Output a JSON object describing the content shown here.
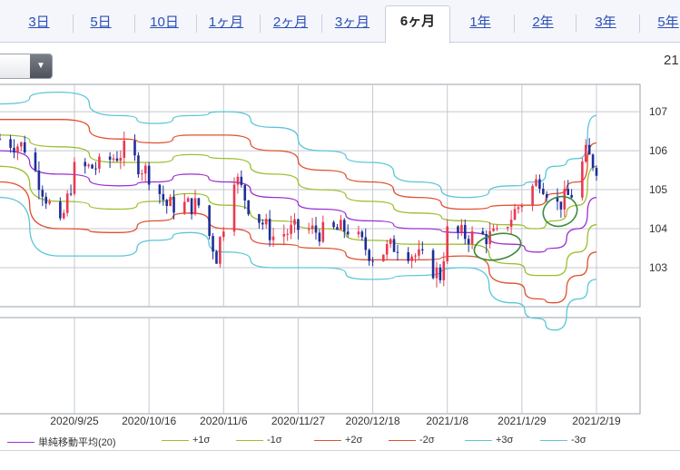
{
  "tabs": [
    {
      "label": "3日",
      "active": false
    },
    {
      "label": "5日",
      "active": false
    },
    {
      "label": "10日",
      "active": false
    },
    {
      "label": "1ヶ月",
      "active": false
    },
    {
      "label": "2ヶ月",
      "active": false
    },
    {
      "label": "3ヶ月",
      "active": false
    },
    {
      "label": "6ヶ月",
      "active": true
    },
    {
      "label": "1年",
      "active": false
    },
    {
      "label": "2年",
      "active": false
    },
    {
      "label": "3年",
      "active": false
    },
    {
      "label": "5年",
      "active": false
    }
  ],
  "top_right_number": "21",
  "chart_data": {
    "type": "line",
    "title": "",
    "xlabel": "",
    "ylabel": "",
    "x_tick_labels": [
      "2020/9/25",
      "2020/10/16",
      "2020/11/6",
      "2020/11/27",
      "2020/12/18",
      "2021/1/8",
      "2021/1/29",
      "2021/2/19"
    ],
    "y_tick_labels": [
      "103",
      "104",
      "105",
      "106",
      "107"
    ],
    "ylim": [
      102.0,
      107.7
    ],
    "grid": true,
    "legend_position": "bottom",
    "price": {
      "start": "2020/9/4",
      "end": "2021/2/19",
      "close_anchors": [
        [
          "2020/9/4",
          106.3
        ],
        [
          "2020/9/11",
          106.1
        ],
        [
          "2020/9/18",
          104.6
        ],
        [
          "2020/9/21",
          104.0
        ],
        [
          "2020/9/25",
          105.5
        ],
        [
          "2020/10/2",
          105.6
        ],
        [
          "2020/10/9",
          106.0
        ],
        [
          "2020/10/16",
          105.4
        ],
        [
          "2020/10/21",
          104.6
        ],
        [
          "2020/10/30",
          104.6
        ],
        [
          "2020/11/4",
          103.3
        ],
        [
          "2020/11/9",
          105.4
        ],
        [
          "2020/11/13",
          104.6
        ],
        [
          "2020/11/20",
          103.8
        ],
        [
          "2020/11/27",
          104.0
        ],
        [
          "2020/12/4",
          103.9
        ],
        [
          "2020/12/11",
          104.0
        ],
        [
          "2020/12/18",
          103.3
        ],
        [
          "2020/12/25",
          103.6
        ],
        [
          "2021/1/1",
          103.2
        ],
        [
          "2021/1/6",
          102.8
        ],
        [
          "2021/1/8",
          103.9
        ],
        [
          "2021/1/15",
          103.8
        ],
        [
          "2021/1/22",
          103.8
        ],
        [
          "2021/1/29",
          104.7
        ],
        [
          "2021/2/3",
          105.3
        ],
        [
          "2021/2/8",
          104.6
        ],
        [
          "2021/2/12",
          104.9
        ],
        [
          "2021/2/16",
          105.9
        ],
        [
          "2021/2/19",
          105.6
        ]
      ]
    },
    "series": [
      {
        "name": "単純移動平均(20)",
        "color": "#9b30d0",
        "values": [
          [
            106.0,
            0
          ],
          [
            105.4,
            0.1
          ],
          [
            105.1,
            0.2
          ],
          [
            105.2,
            0.26
          ],
          [
            105.4,
            0.32
          ],
          [
            105.2,
            0.38
          ],
          [
            104.8,
            0.46
          ],
          [
            104.5,
            0.54
          ],
          [
            104.2,
            0.62
          ],
          [
            104.0,
            0.7
          ],
          [
            103.9,
            0.78
          ],
          [
            103.6,
            0.86
          ],
          [
            103.4,
            0.9
          ],
          [
            103.5,
            0.93
          ],
          [
            104.0,
            0.97
          ],
          [
            104.8,
            1.0
          ]
        ]
      },
      {
        "name": "+1σ",
        "color": "#9cbf2f",
        "values": [
          [
            106.4,
            0
          ],
          [
            106.1,
            0.1
          ],
          [
            105.7,
            0.2
          ],
          [
            105.7,
            0.26
          ],
          [
            105.9,
            0.32
          ],
          [
            105.8,
            0.38
          ],
          [
            105.4,
            0.46
          ],
          [
            105.0,
            0.54
          ],
          [
            104.7,
            0.62
          ],
          [
            104.4,
            0.7
          ],
          [
            104.2,
            0.78
          ],
          [
            104.1,
            0.86
          ],
          [
            104.0,
            0.9
          ],
          [
            104.2,
            0.93
          ],
          [
            104.6,
            0.97
          ],
          [
            105.6,
            1.0
          ]
        ]
      },
      {
        "name": "-1σ",
        "color": "#9cbf2f",
        "values": [
          [
            105.6,
            0
          ],
          [
            104.7,
            0.1
          ],
          [
            104.5,
            0.2
          ],
          [
            104.7,
            0.26
          ],
          [
            104.9,
            0.32
          ],
          [
            104.6,
            0.38
          ],
          [
            104.2,
            0.46
          ],
          [
            104.0,
            0.54
          ],
          [
            103.7,
            0.62
          ],
          [
            103.6,
            0.7
          ],
          [
            103.6,
            0.78
          ],
          [
            103.1,
            0.86
          ],
          [
            102.8,
            0.9
          ],
          [
            102.8,
            0.93
          ],
          [
            103.4,
            0.97
          ],
          [
            104.1,
            1.0
          ]
        ]
      },
      {
        "name": "+2σ",
        "color": "#e0502f",
        "values": [
          [
            106.8,
            0
          ],
          [
            106.8,
            0.1
          ],
          [
            106.3,
            0.2
          ],
          [
            106.2,
            0.26
          ],
          [
            106.4,
            0.32
          ],
          [
            106.4,
            0.38
          ],
          [
            106.0,
            0.46
          ],
          [
            105.5,
            0.54
          ],
          [
            105.2,
            0.62
          ],
          [
            104.8,
            0.7
          ],
          [
            104.5,
            0.78
          ],
          [
            104.6,
            0.86
          ],
          [
            104.6,
            0.9
          ],
          [
            104.9,
            0.93
          ],
          [
            105.2,
            0.97
          ],
          [
            106.2,
            1.0
          ]
        ]
      },
      {
        "name": "-2σ",
        "color": "#e0502f",
        "values": [
          [
            105.2,
            0
          ],
          [
            104.0,
            0.1
          ],
          [
            103.9,
            0.2
          ],
          [
            104.2,
            0.26
          ],
          [
            104.4,
            0.32
          ],
          [
            104.0,
            0.38
          ],
          [
            103.6,
            0.46
          ],
          [
            103.5,
            0.54
          ],
          [
            103.2,
            0.62
          ],
          [
            103.2,
            0.7
          ],
          [
            103.3,
            0.78
          ],
          [
            102.6,
            0.86
          ],
          [
            102.2,
            0.9
          ],
          [
            102.1,
            0.93
          ],
          [
            102.8,
            0.97
          ],
          [
            103.4,
            1.0
          ]
        ]
      },
      {
        "name": "+3σ",
        "color": "#5cc6d8",
        "values": [
          [
            107.2,
            0
          ],
          [
            107.5,
            0.1
          ],
          [
            106.9,
            0.2
          ],
          [
            106.7,
            0.26
          ],
          [
            106.9,
            0.32
          ],
          [
            107.0,
            0.38
          ],
          [
            106.6,
            0.46
          ],
          [
            106.0,
            0.54
          ],
          [
            105.7,
            0.62
          ],
          [
            105.2,
            0.7
          ],
          [
            104.8,
            0.78
          ],
          [
            105.1,
            0.86
          ],
          [
            105.2,
            0.9
          ],
          [
            105.6,
            0.93
          ],
          [
            105.8,
            0.97
          ],
          [
            106.9,
            1.0
          ]
        ]
      },
      {
        "name": "-3σ",
        "color": "#5cc6d8",
        "values": [
          [
            104.8,
            0
          ],
          [
            103.3,
            0.1
          ],
          [
            103.3,
            0.2
          ],
          [
            103.7,
            0.26
          ],
          [
            103.9,
            0.32
          ],
          [
            103.4,
            0.38
          ],
          [
            103.0,
            0.46
          ],
          [
            103.0,
            0.54
          ],
          [
            102.7,
            0.62
          ],
          [
            102.8,
            0.7
          ],
          [
            103.0,
            0.78
          ],
          [
            102.1,
            0.86
          ],
          [
            101.7,
            0.9
          ],
          [
            101.4,
            0.93
          ],
          [
            102.2,
            0.97
          ],
          [
            102.7,
            1.0
          ]
        ]
      }
    ]
  }
}
